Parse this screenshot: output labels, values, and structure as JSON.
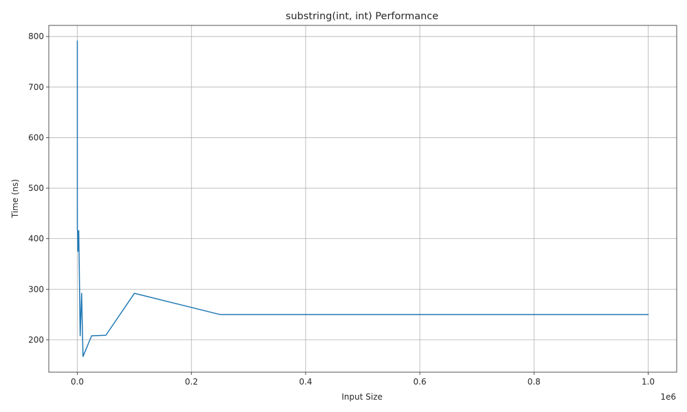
{
  "chart_data": {
    "type": "line",
    "title": "substring(int, int) Performance",
    "xlabel": "Input Size",
    "ylabel": "Time (ns)",
    "x_offset_label": "1e6",
    "xlim": [
      -50000,
      1050000
    ],
    "ylim": [
      136,
      822
    ],
    "x_scale_factor": 1000000,
    "xticks": [
      0,
      200000,
      400000,
      600000,
      800000,
      1000000
    ],
    "xtick_labels": [
      "0.0",
      "0.2",
      "0.4",
      "0.6",
      "0.8",
      "1.0"
    ],
    "yticks": [
      200,
      300,
      400,
      500,
      600,
      700,
      800
    ],
    "ytick_labels": [
      "200",
      "300",
      "400",
      "500",
      "600",
      "700",
      "800"
    ],
    "grid": true,
    "series": [
      {
        "color": "#1f77b4",
        "x": [
          10,
          25,
          50,
          75,
          100,
          250,
          500,
          750,
          1000,
          2500,
          5000,
          7500,
          10000,
          25000,
          50000,
          100000,
          250000,
          500000,
          750000,
          1000000
        ],
        "y": [
          791,
          420,
          458,
          420,
          418,
          417,
          417,
          400,
          375,
          416,
          208,
          292,
          167,
          208,
          209,
          292,
          250,
          250,
          250,
          250
        ]
      }
    ]
  }
}
